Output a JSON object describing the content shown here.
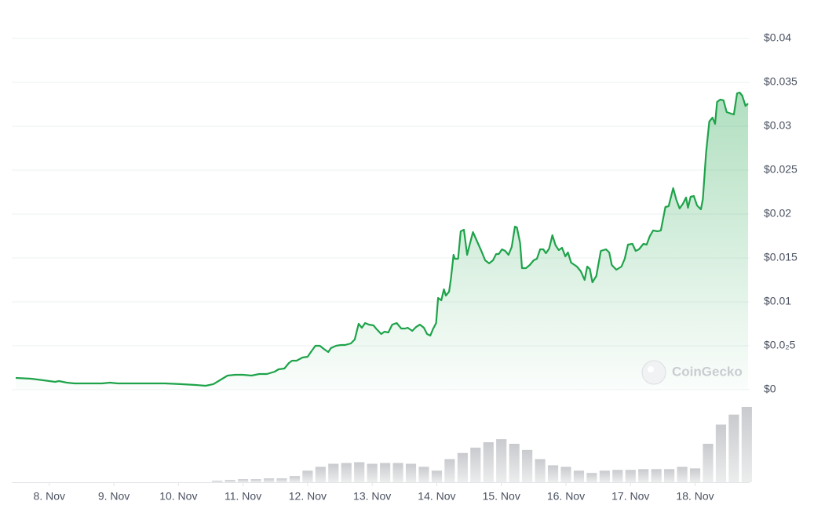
{
  "chart_data": {
    "type": "area",
    "watermark": "CoinGecko",
    "color": "#1ea34a",
    "grid": true,
    "xlim": [
      7.48,
      18.82
    ],
    "ylim": [
      0,
      0.04
    ],
    "xticks": [
      {
        "value": 8,
        "label": "8. Nov"
      },
      {
        "value": 9,
        "label": "9. Nov"
      },
      {
        "value": 10,
        "label": "10. Nov"
      },
      {
        "value": 11,
        "label": "11. Nov"
      },
      {
        "value": 12,
        "label": "12. Nov"
      },
      {
        "value": 13,
        "label": "13. Nov"
      },
      {
        "value": 14,
        "label": "14. Nov"
      },
      {
        "value": 15,
        "label": "15. Nov"
      },
      {
        "value": 16,
        "label": "16. Nov"
      },
      {
        "value": 17,
        "label": "17. Nov"
      },
      {
        "value": 18,
        "label": "18. Nov"
      }
    ],
    "yticks": [
      {
        "value": 0,
        "label": "$0"
      },
      {
        "value": 0.005,
        "label": "$0.0₂5"
      },
      {
        "value": 0.01,
        "label": "$0.01"
      },
      {
        "value": 0.015,
        "label": "$0.015"
      },
      {
        "value": 0.02,
        "label": "$0.02"
      },
      {
        "value": 0.025,
        "label": "$0.025"
      },
      {
        "value": 0.03,
        "label": "$0.03"
      },
      {
        "value": 0.035,
        "label": "$0.035"
      },
      {
        "value": 0.04,
        "label": "$0.04"
      }
    ],
    "x": [
      7.48,
      7.72,
      7.91,
      8.09,
      8.15,
      8.27,
      8.39,
      8.57,
      8.82,
      8.94,
      9.06,
      9.42,
      9.79,
      10.03,
      10.27,
      10.42,
      10.54,
      10.64,
      10.76,
      10.88,
      11.0,
      11.13,
      11.25,
      11.37,
      11.49,
      11.55,
      11.64,
      11.71,
      11.76,
      11.83,
      11.92,
      12.0,
      12.06,
      12.12,
      12.19,
      12.25,
      12.32,
      12.36,
      12.44,
      12.52,
      12.58,
      12.67,
      12.73,
      12.79,
      12.84,
      12.89,
      12.95,
      13.02,
      13.07,
      13.14,
      13.19,
      13.25,
      13.31,
      13.38,
      13.45,
      13.51,
      13.55,
      13.62,
      13.68,
      13.74,
      13.8,
      13.85,
      13.9,
      13.94,
      13.99,
      14.02,
      14.07,
      14.11,
      14.14,
      14.19,
      14.22,
      14.26,
      14.28,
      14.33,
      14.37,
      14.42,
      14.47,
      14.5,
      14.56,
      14.62,
      14.69,
      14.75,
      14.81,
      14.87,
      14.92,
      14.96,
      15.01,
      15.06,
      15.11,
      15.16,
      15.21,
      15.24,
      15.29,
      15.32,
      15.38,
      15.44,
      15.5,
      15.55,
      15.6,
      15.65,
      15.69,
      15.74,
      15.79,
      15.84,
      15.89,
      15.94,
      15.99,
      16.03,
      16.08,
      16.17,
      16.23,
      16.29,
      16.33,
      16.37,
      16.41,
      16.47,
      16.54,
      16.62,
      16.67,
      16.71,
      16.78,
      16.86,
      16.91,
      16.96,
      17.03,
      17.08,
      17.13,
      17.2,
      17.25,
      17.3,
      17.35,
      17.42,
      17.47,
      17.54,
      17.59,
      17.66,
      17.71,
      17.76,
      17.81,
      17.86,
      17.89,
      17.93,
      17.98,
      18.03,
      18.09,
      18.12,
      18.17,
      18.22,
      18.27,
      18.31,
      18.34,
      18.39,
      18.44,
      18.49,
      18.56,
      18.6,
      18.65,
      18.69,
      18.73,
      18.78,
      18.82
    ],
    "values": [
      0.00134,
      0.00125,
      0.00107,
      0.00089,
      0.00098,
      0.0008,
      0.00071,
      0.00071,
      0.00071,
      0.0008,
      0.00071,
      0.00071,
      0.00071,
      0.00063,
      0.00054,
      0.00045,
      0.00063,
      0.00107,
      0.00161,
      0.0017,
      0.0017,
      0.00161,
      0.00179,
      0.00179,
      0.00205,
      0.00232,
      0.00241,
      0.00304,
      0.0033,
      0.0033,
      0.00366,
      0.00375,
      0.00438,
      0.005,
      0.005,
      0.00464,
      0.00429,
      0.00473,
      0.005,
      0.00509,
      0.00509,
      0.00527,
      0.00571,
      0.0075,
      0.00705,
      0.00759,
      0.00741,
      0.00732,
      0.00688,
      0.00634,
      0.00661,
      0.00652,
      0.00741,
      0.00759,
      0.00696,
      0.00696,
      0.00705,
      0.0067,
      0.00714,
      0.00741,
      0.00705,
      0.00634,
      0.00616,
      0.00688,
      0.00759,
      0.01045,
      0.01018,
      0.01143,
      0.01071,
      0.01116,
      0.01268,
      0.01536,
      0.01491,
      0.01491,
      0.01804,
      0.01821,
      0.01536,
      0.01625,
      0.01795,
      0.01696,
      0.0158,
      0.01473,
      0.01438,
      0.01473,
      0.01545,
      0.01545,
      0.01598,
      0.0158,
      0.01536,
      0.01625,
      0.01857,
      0.01848,
      0.0167,
      0.01384,
      0.01384,
      0.0142,
      0.01473,
      0.01491,
      0.01598,
      0.01598,
      0.01554,
      0.01607,
      0.01759,
      0.01643,
      0.01589,
      0.01616,
      0.01518,
      0.01563,
      0.01446,
      0.01402,
      0.01348,
      0.0125,
      0.01402,
      0.01375,
      0.01223,
      0.01295,
      0.0158,
      0.01598,
      0.01563,
      0.0142,
      0.01366,
      0.01402,
      0.01491,
      0.01652,
      0.01661,
      0.0158,
      0.01598,
      0.01661,
      0.01652,
      0.0175,
      0.01813,
      0.01804,
      0.01813,
      0.0208,
      0.02089,
      0.02295,
      0.02161,
      0.02063,
      0.02116,
      0.02188,
      0.02071,
      0.02196,
      0.02205,
      0.02098,
      0.02054,
      0.0217,
      0.02696,
      0.03054,
      0.03098,
      0.03027,
      0.03277,
      0.03304,
      0.03295,
      0.03161,
      0.03143,
      0.03134,
      0.03375,
      0.03384,
      0.03348,
      0.03232,
      0.03259
    ],
    "volume": {
      "color": "#d9dadd",
      "vlim": [
        0,
        100
      ],
      "x": [
        10.6,
        10.8,
        11.0,
        11.2,
        11.4,
        11.6,
        11.8,
        12.0,
        12.2,
        12.4,
        12.6,
        12.8,
        13.0,
        13.2,
        13.4,
        13.6,
        13.8,
        14.0,
        14.2,
        14.4,
        14.6,
        14.8,
        15.0,
        15.2,
        15.4,
        15.6,
        15.8,
        16.0,
        16.2,
        16.4,
        16.6,
        16.8,
        17.0,
        17.2,
        17.4,
        17.6,
        17.8,
        18.0,
        18.2,
        18.4,
        18.6,
        18.8
      ],
      "values": [
        2,
        3,
        4,
        4,
        5,
        5,
        8,
        15,
        20,
        24,
        25,
        26,
        24,
        25,
        25,
        24,
        20,
        15,
        30,
        38,
        45,
        52,
        56,
        50,
        42,
        30,
        22,
        20,
        15,
        12,
        15,
        16,
        16,
        17,
        17,
        17,
        20,
        18,
        50,
        75,
        88,
        98
      ]
    }
  }
}
